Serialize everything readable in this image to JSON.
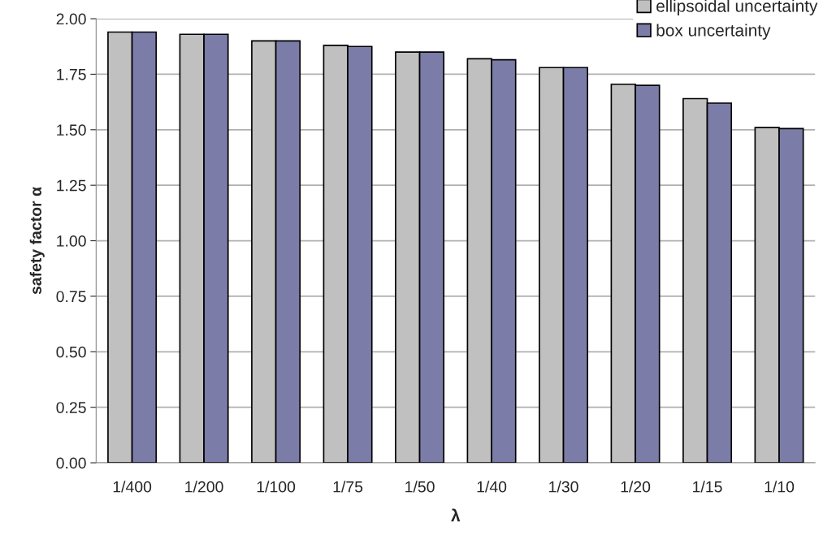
{
  "chart_data": {
    "type": "bar",
    "xlabel": "λ",
    "ylabel": "safety factor α",
    "categories": [
      "1/400",
      "1/200",
      "1/100",
      "1/75",
      "1/50",
      "1/40",
      "1/30",
      "1/20",
      "1/15",
      "1/10"
    ],
    "series": [
      {
        "name": "ellipsoidal uncertainty",
        "color": "#c0c0c0",
        "values": [
          1.94,
          1.93,
          1.9,
          1.88,
          1.85,
          1.82,
          1.78,
          1.705,
          1.64,
          1.51
        ]
      },
      {
        "name": "box uncertainty",
        "color": "#7c7ca8",
        "values": [
          1.94,
          1.93,
          1.9,
          1.875,
          1.85,
          1.815,
          1.78,
          1.7,
          1.62,
          1.505
        ]
      }
    ],
    "ylim": [
      0,
      2
    ],
    "yticks": [
      {
        "value": 0,
        "label": "0.00"
      },
      {
        "value": 0.25,
        "label": "0.25"
      },
      {
        "value": 0.5,
        "label": "0.50"
      },
      {
        "value": 0.75,
        "label": "0.75"
      },
      {
        "value": 1,
        "label": "1.00"
      },
      {
        "value": 1.25,
        "label": "1.25"
      },
      {
        "value": 1.5,
        "label": "1.50"
      },
      {
        "value": 1.75,
        "label": "1.75"
      },
      {
        "value": 2,
        "label": "2.00"
      }
    ],
    "grid": "y",
    "legend": "top right"
  }
}
